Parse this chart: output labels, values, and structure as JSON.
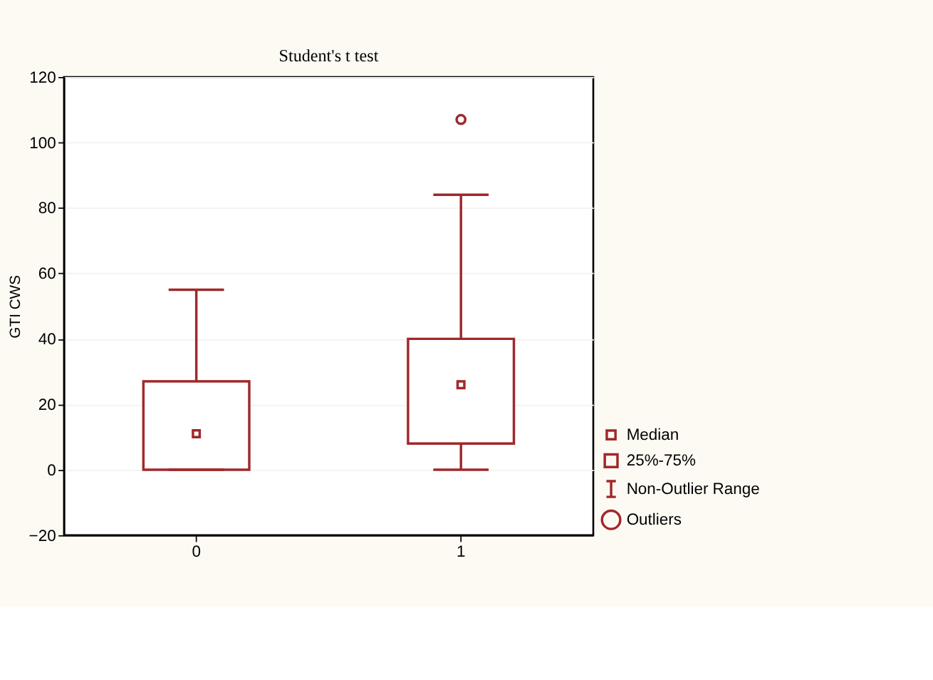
{
  "chart_data": {
    "type": "box",
    "title": "Student's t test",
    "ylabel": "GTI CWS",
    "categories": [
      "0",
      "1"
    ],
    "series": [
      {
        "color": "#a0282a",
        "boxes": [
          {
            "low": 0,
            "q1": 0,
            "median": 11,
            "q3": 27,
            "high": 55
          },
          {
            "low": 0,
            "q1": 8,
            "median": 26,
            "q3": 40,
            "high": 84,
            "outliers": [
              107
            ]
          }
        ]
      }
    ],
    "ylim": [
      -20,
      120
    ],
    "yticks": [
      -20,
      0,
      20,
      40,
      60,
      80,
      100,
      120
    ],
    "grid": "y",
    "annotations": [
      "Median",
      "25%-75%",
      "Non-Outlier Range",
      "Outliers"
    ]
  }
}
